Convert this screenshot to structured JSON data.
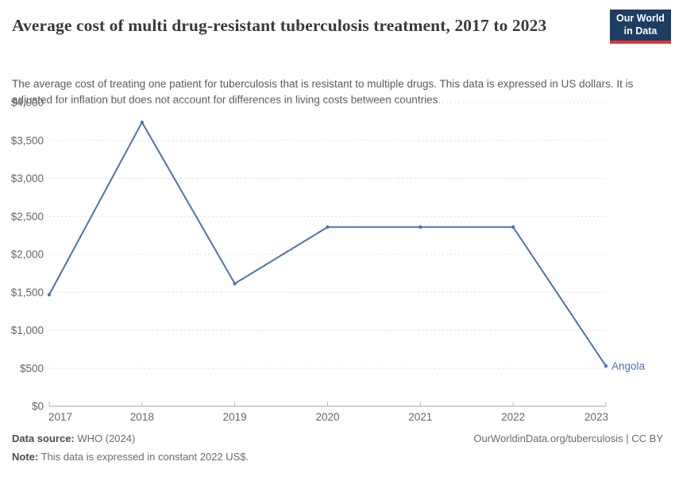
{
  "header": {
    "title": "Average cost of multi drug-resistant tuberculosis treatment, 2017 to 2023",
    "subtitle": "The average cost of treating one patient for tuberculosis that is resistant to multiple drugs. This data is expressed in US dollars. It is adjusted for inflation but does not account for differences in living costs between countries.",
    "logo": {
      "line1": "Our World",
      "line2": "in Data"
    }
  },
  "chart_data": {
    "type": "line",
    "title": "Average cost of multi drug-resistant tuberculosis treatment, 2017 to 2023",
    "xlabel": "",
    "ylabel": "",
    "x": [
      2017,
      2018,
      2019,
      2020,
      2021,
      2022,
      2023
    ],
    "series": [
      {
        "name": "Angola",
        "color": "#4f72ad",
        "values": [
          1470,
          3740,
          1615,
          2360,
          2360,
          2360,
          530
        ]
      }
    ],
    "xlim": [
      2017,
      2023
    ],
    "ylim": [
      0,
      4000
    ],
    "xticks": [
      2017,
      2018,
      2019,
      2020,
      2021,
      2022,
      2023
    ],
    "yticks": [
      0,
      500,
      1000,
      1500,
      2000,
      2500,
      3000,
      3500,
      4000
    ],
    "ytick_labels": [
      "$0",
      "$500",
      "$1,000",
      "$1,500",
      "$2,000",
      "$2,500",
      "$3,000",
      "$3,500",
      "$4,000"
    ],
    "ytick_prefix": "$",
    "grid": true,
    "gridline_style": "dashed",
    "legend_position": "end-of-line-label",
    "end_label": "Angola"
  },
  "footer": {
    "datasource_label": "Data source:",
    "datasource_value": " WHO (2024)",
    "note_label": "Note:",
    "note_value": " This data is expressed in constant 2022 US$.",
    "link": "OurWorldinData.org/tuberculosis | CC BY"
  },
  "colors": {
    "line_blue": "#4f72ad",
    "logo_navy": "#1d3d63",
    "logo_red": "#d73a33",
    "gridline": "#dcdcdc",
    "axis": "#a6a6a6",
    "tick_label": "#666666",
    "title_text": "#3a3a3a",
    "subtitle_text": "#5b5b5b"
  }
}
